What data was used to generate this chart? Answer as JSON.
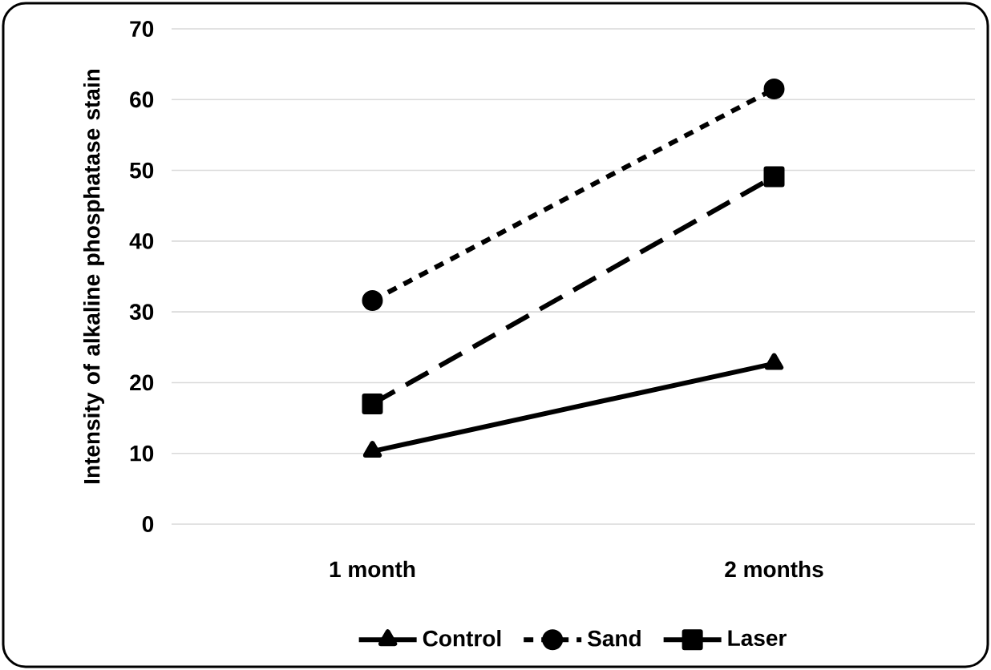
{
  "chart_data": {
    "type": "line",
    "ylabel": "Intensity of alkaline phosphatase stain",
    "categories": [
      "1 month",
      "2 months"
    ],
    "series": [
      {
        "name": "Control",
        "color": "#000000",
        "values": [
          10.3,
          22.7
        ],
        "marker": "triangle",
        "line_style": "solid"
      },
      {
        "name": "Sand",
        "color": "#000000",
        "values": [
          31.6,
          61.5
        ],
        "marker": "circle",
        "line_style": "dotted"
      },
      {
        "name": "Laser",
        "color": "#000000",
        "values": [
          17.0,
          49.1
        ],
        "marker": "square",
        "line_style": "dashed"
      }
    ],
    "ylim": [
      0,
      70
    ],
    "yticks": [
      0,
      10,
      20,
      30,
      40,
      50,
      60,
      70
    ],
    "grid": "y",
    "legend": "bottom"
  }
}
